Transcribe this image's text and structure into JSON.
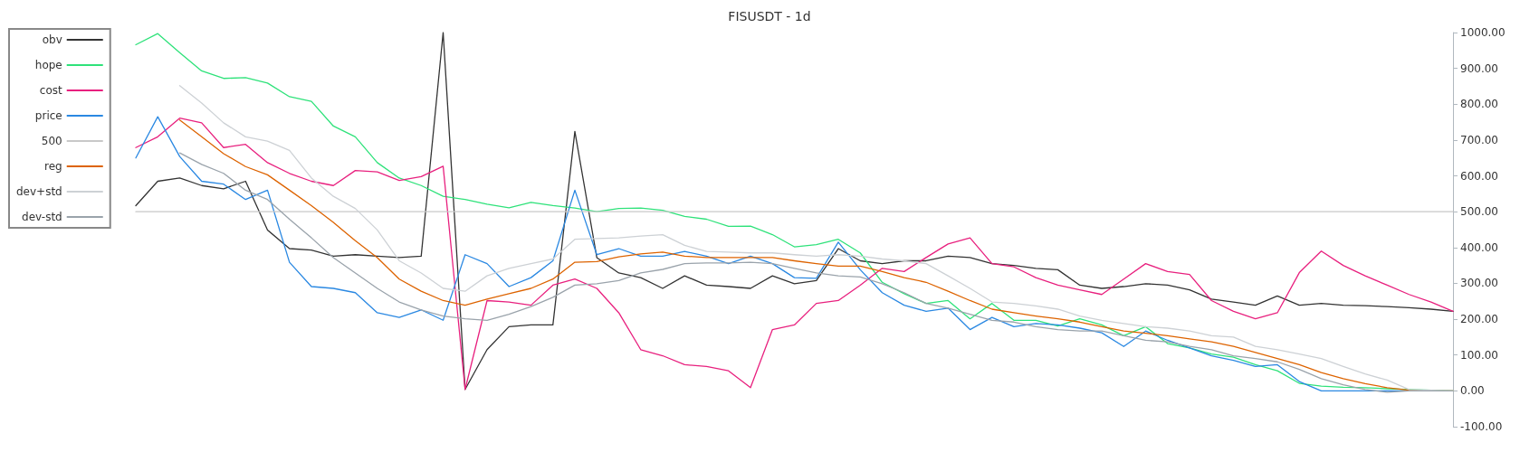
{
  "chart_data": {
    "type": "line",
    "title": "FISUSDT - 1d",
    "categories": [
      null,
      null,
      null,
      null,
      null,
      null,
      null,
      null,
      null,
      null,
      null,
      null,
      null,
      null,
      null,
      null,
      null,
      null,
      null,
      null,
      null,
      null,
      null,
      null,
      null,
      null,
      null,
      null,
      null,
      null,
      null,
      null,
      null,
      null,
      null,
      null,
      null,
      null,
      null,
      null,
      null,
      null,
      null,
      null,
      null,
      null,
      null,
      null,
      null,
      null,
      null,
      null,
      null,
      null,
      null,
      null,
      null,
      null,
      null,
      null,
      null
    ],
    "series": [
      {
        "name": "obv",
        "color": "#333333",
        "values": [
          517,
          585,
          594,
          573,
          564,
          585,
          449,
          397,
          393,
          376,
          380,
          376,
          372,
          376,
          1000,
          4,
          115,
          179,
          184,
          184,
          724,
          372,
          329,
          316,
          286,
          321,
          295,
          291,
          286,
          321,
          299,
          308,
          397,
          363,
          355,
          363,
          363,
          376,
          372,
          355,
          350,
          342,
          338,
          295,
          286,
          291,
          299,
          295,
          282,
          256,
          248,
          239,
          265,
          239,
          244,
          239,
          238,
          235,
          232,
          228,
          222
        ]
      },
      {
        "name": "hope",
        "color": "#2ee27a",
        "values": [
          966,
          997,
          944,
          893,
          872,
          874,
          859,
          821,
          808,
          739,
          709,
          637,
          594,
          573,
          543,
          534,
          521,
          511,
          526,
          517,
          510,
          500,
          509,
          510,
          504,
          487,
          479,
          459,
          460,
          436,
          402,
          408,
          423,
          385,
          303,
          271,
          244,
          252,
          201,
          244,
          197,
          197,
          181,
          201,
          184,
          154,
          179,
          132,
          120,
          103,
          94,
          73,
          56,
          21,
          13,
          10,
          9,
          6,
          4,
          2,
          0
        ]
      },
      {
        "name": "cost",
        "color": "#e8207e",
        "values": [
          679,
          709,
          761,
          748,
          679,
          688,
          637,
          607,
          585,
          573,
          615,
          611,
          587,
          598,
          627,
          4,
          252,
          248,
          239,
          295,
          312,
          286,
          218,
          115,
          98,
          73,
          68,
          56,
          9,
          171,
          184,
          244,
          252,
          295,
          342,
          333,
          372,
          410,
          427,
          355,
          346,
          316,
          295,
          282,
          269,
          312,
          355,
          333,
          325,
          252,
          222,
          201,
          218,
          330,
          390,
          350,
          321,
          295,
          269,
          248,
          222
        ]
      },
      {
        "name": "price",
        "color": "#2a88e2",
        "values": [
          650,
          765,
          654,
          585,
          577,
          534,
          560,
          359,
          291,
          286,
          274,
          218,
          205,
          226,
          197,
          380,
          355,
          291,
          316,
          363,
          560,
          380,
          397,
          376,
          376,
          389,
          376,
          355,
          376,
          355,
          316,
          314,
          415,
          338,
          274,
          239,
          222,
          231,
          171,
          205,
          179,
          188,
          184,
          175,
          162,
          124,
          167,
          141,
          120,
          98,
          85,
          68,
          73,
          26,
          0,
          0,
          0,
          0,
          0,
          null,
          null
        ]
      },
      {
        "name": "500",
        "color": "#c8c8c8",
        "values": [
          500,
          500,
          500,
          500,
          500,
          500,
          500,
          500,
          500,
          500,
          500,
          500,
          500,
          500,
          500,
          500,
          500,
          500,
          500,
          500,
          500,
          500,
          500,
          500,
          500,
          500,
          500,
          500,
          500,
          500,
          500,
          500,
          500,
          500,
          500,
          500,
          500,
          500,
          500,
          500,
          500,
          500,
          500,
          500,
          500,
          500,
          500,
          500,
          500,
          500,
          500,
          500,
          500,
          500,
          500,
          500,
          500,
          500,
          500,
          500,
          500
        ]
      },
      {
        "name": "reg",
        "color": "#dd6300",
        "values": [
          null,
          null,
          756,
          709,
          662,
          626,
          603,
          560,
          517,
          470,
          419,
          372,
          312,
          278,
          252,
          239,
          256,
          271,
          286,
          312,
          359,
          361,
          374,
          382,
          387,
          376,
          372,
          372,
          372,
          372,
          363,
          355,
          348,
          348,
          333,
          316,
          303,
          278,
          252,
          228,
          218,
          209,
          201,
          192,
          179,
          167,
          161,
          154,
          145,
          137,
          124,
          107,
          90,
          73,
          51,
          34,
          20,
          9,
          2,
          0,
          0
        ]
      },
      {
        "name": "dev+std",
        "color": "#cdd1d5",
        "values": [
          null,
          null,
          852,
          803,
          748,
          709,
          697,
          671,
          594,
          543,
          509,
          449,
          363,
          329,
          286,
          278,
          321,
          342,
          355,
          368,
          423,
          425,
          427,
          432,
          436,
          406,
          389,
          387,
          385,
          385,
          380,
          376,
          380,
          376,
          368,
          363,
          355,
          321,
          286,
          248,
          244,
          237,
          228,
          209,
          197,
          188,
          179,
          175,
          167,
          154,
          150,
          124,
          115,
          103,
          90,
          68,
          47,
          30,
          4,
          2,
          0
        ]
      },
      {
        "name": "dev-std",
        "color": "#9aa3ab",
        "values": [
          null,
          null,
          664,
          632,
          607,
          560,
          534,
          479,
          427,
          372,
          329,
          286,
          248,
          226,
          209,
          201,
          197,
          214,
          235,
          261,
          295,
          299,
          308,
          329,
          339,
          355,
          357,
          357,
          359,
          355,
          342,
          329,
          321,
          318,
          299,
          274,
          244,
          231,
          214,
          197,
          192,
          179,
          171,
          167,
          167,
          154,
          141,
          137,
          124,
          115,
          98,
          90,
          81,
          60,
          34,
          17,
          4,
          -4,
          0,
          0,
          0
        ]
      }
    ],
    "ylim": [
      -100,
      1000
    ],
    "yticks": [
      {
        "value": -100,
        "label": "-100.00"
      },
      {
        "value": 0,
        "label": "0.00"
      },
      {
        "value": 100,
        "label": "100.00"
      },
      {
        "value": 200,
        "label": "200.00"
      },
      {
        "value": 300,
        "label": "300.00"
      },
      {
        "value": 400,
        "label": "400.00"
      },
      {
        "value": 500,
        "label": "500.00"
      },
      {
        "value": 600,
        "label": "600.00"
      },
      {
        "value": 700,
        "label": "700.00"
      },
      {
        "value": 800,
        "label": "800.00"
      },
      {
        "value": 900,
        "label": "900.00"
      },
      {
        "value": 1000,
        "label": "1000.00"
      }
    ],
    "legend": "top left",
    "marker": "none",
    "line_style": "solid"
  }
}
